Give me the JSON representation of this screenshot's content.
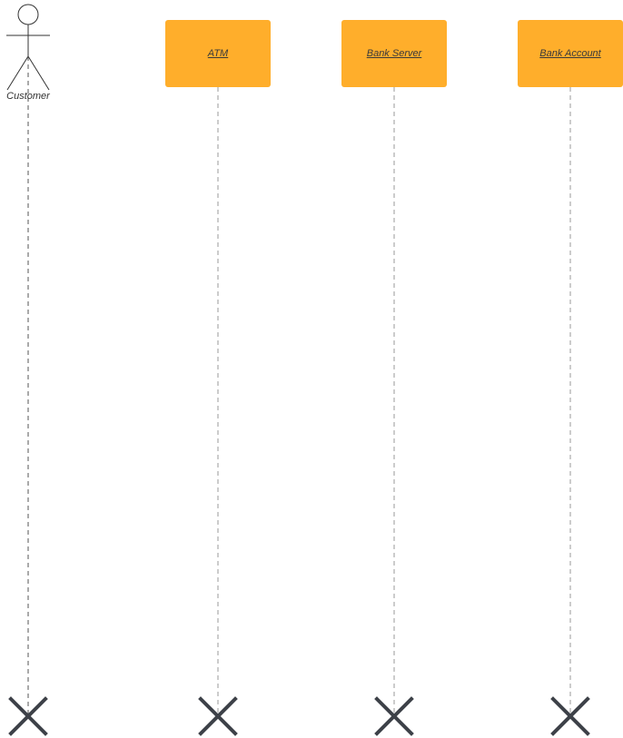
{
  "diagram": {
    "colors": {
      "object_fill": "#ffae2b",
      "lifeline": "#9a9a9a",
      "destroy_mark": "#3d4148",
      "actor_stroke": "#333333"
    },
    "actor": {
      "label": "Customer",
      "icon": "stick-figure-icon"
    },
    "objects": [
      {
        "id": "atm",
        "label": "ATM"
      },
      {
        "id": "bank-server",
        "label": "Bank Server"
      },
      {
        "id": "bank-account",
        "label": "Bank Account"
      }
    ],
    "destroy_icon": "x-destroy-icon"
  }
}
